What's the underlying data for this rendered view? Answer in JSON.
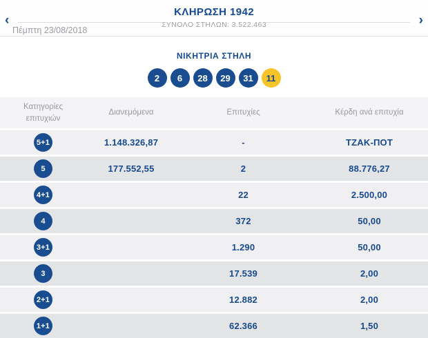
{
  "header": {
    "title": "ΚΛΗΡΩΣΗ 1942",
    "subtitle": "ΣΥΝΟΛΟ ΣΤΗΛΩΝ: 3.522.463",
    "date": "Πέμπτη 23/08/2018",
    "prev_icon": "‹",
    "next_icon": "›"
  },
  "winning": {
    "heading": "ΝΙΚΗΤΡΙΑ ΣΤΗΛΗ",
    "numbers": [
      "2",
      "6",
      "28",
      "29",
      "31"
    ],
    "joker": "11"
  },
  "table": {
    "columns": {
      "category": "Κατηγορίες επιτυχιών",
      "distributed": "Διανεμόμενα",
      "winners": "Επιτυχίες",
      "prize": "Κέρδη ανά επιτυχία"
    },
    "rows": [
      {
        "category": "5+1",
        "distributed": "1.148.326,87",
        "winners": "-",
        "prize": "ΤΖΑΚ-ΠΟΤ"
      },
      {
        "category": "5",
        "distributed": "177.552,55",
        "winners": "2",
        "prize": "88.776,27"
      },
      {
        "category": "4+1",
        "distributed": "",
        "winners": "22",
        "prize": "2.500,00"
      },
      {
        "category": "4",
        "distributed": "",
        "winners": "372",
        "prize": "50,00"
      },
      {
        "category": "3+1",
        "distributed": "",
        "winners": "1.290",
        "prize": "50,00"
      },
      {
        "category": "3",
        "distributed": "",
        "winners": "17.539",
        "prize": "2,00"
      },
      {
        "category": "2+1",
        "distributed": "",
        "winners": "12.882",
        "prize": "2,00"
      },
      {
        "category": "1+1",
        "distributed": "",
        "winners": "62.366",
        "prize": "1,50"
      }
    ]
  },
  "colors": {
    "primary_blue": "#1a4d8f",
    "joker_yellow": "#f6c428",
    "muted_gray": "#9b9da1",
    "row_light": "#f0f0f2",
    "row_dark": "#e3e4e6"
  }
}
